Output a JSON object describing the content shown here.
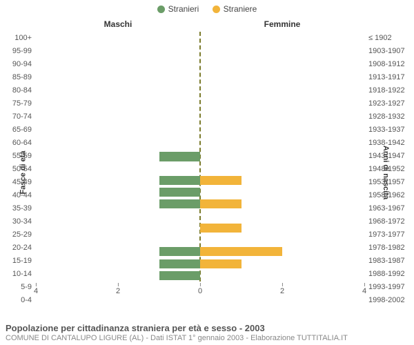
{
  "legend": {
    "male": {
      "label": "Stranieri",
      "color": "#6b9d68"
    },
    "female": {
      "label": "Straniere",
      "color": "#f2b43a"
    }
  },
  "columns": {
    "left": "Maschi",
    "right": "Femmine"
  },
  "axis_titles": {
    "left": "Fasce di età",
    "right": "Anni di nascita"
  },
  "chart": {
    "type": "population-pyramid",
    "xlim": 4,
    "xticks_left": [
      4,
      2,
      0
    ],
    "xticks_right": [
      0,
      2,
      4
    ],
    "background_color": "#ffffff",
    "centerline_color": "#7a7a2a",
    "row_height_pct": 4.76,
    "bar_fill_pct": 76
  },
  "rows": [
    {
      "age": "100+",
      "birth": "≤ 1902",
      "m": 0,
      "f": 0
    },
    {
      "age": "95-99",
      "birth": "1903-1907",
      "m": 0,
      "f": 0
    },
    {
      "age": "90-94",
      "birth": "1908-1912",
      "m": 0,
      "f": 0
    },
    {
      "age": "85-89",
      "birth": "1913-1917",
      "m": 0,
      "f": 0
    },
    {
      "age": "80-84",
      "birth": "1918-1922",
      "m": 0,
      "f": 0
    },
    {
      "age": "75-79",
      "birth": "1923-1927",
      "m": 0,
      "f": 0
    },
    {
      "age": "70-74",
      "birth": "1928-1932",
      "m": 0,
      "f": 0
    },
    {
      "age": "65-69",
      "birth": "1933-1937",
      "m": 0,
      "f": 0
    },
    {
      "age": "60-64",
      "birth": "1938-1942",
      "m": 0,
      "f": 0
    },
    {
      "age": "55-59",
      "birth": "1943-1947",
      "m": 0,
      "f": 0
    },
    {
      "age": "50-54",
      "birth": "1948-1952",
      "m": 1,
      "f": 0
    },
    {
      "age": "45-49",
      "birth": "1953-1957",
      "m": 0,
      "f": 0
    },
    {
      "age": "40-44",
      "birth": "1958-1962",
      "m": 1,
      "f": 1
    },
    {
      "age": "35-39",
      "birth": "1963-1967",
      "m": 1,
      "f": 0
    },
    {
      "age": "30-34",
      "birth": "1968-1972",
      "m": 1,
      "f": 1
    },
    {
      "age": "25-29",
      "birth": "1973-1977",
      "m": 0,
      "f": 0
    },
    {
      "age": "20-24",
      "birth": "1978-1982",
      "m": 0,
      "f": 1
    },
    {
      "age": "15-19",
      "birth": "1983-1987",
      "m": 0,
      "f": 0
    },
    {
      "age": "10-14",
      "birth": "1988-1992",
      "m": 1,
      "f": 2
    },
    {
      "age": "5-9",
      "birth": "1993-1997",
      "m": 1,
      "f": 1
    },
    {
      "age": "0-4",
      "birth": "1998-2002",
      "m": 1,
      "f": 0
    }
  ],
  "footer": {
    "title": "Popolazione per cittadinanza straniera per età e sesso - 2003",
    "subtitle": "COMUNE DI CANTALUPO LIGURE (AL) - Dati ISTAT 1° gennaio 2003 - Elaborazione TUTTITALIA.IT"
  }
}
